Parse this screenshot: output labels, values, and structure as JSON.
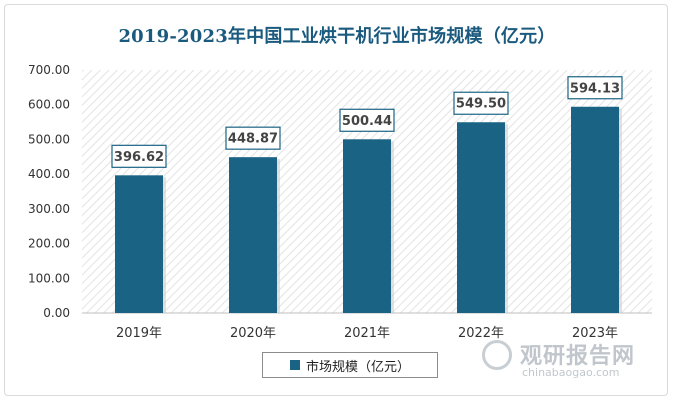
{
  "chart_data": {
    "type": "bar",
    "title": "2019-2023年中国工业烘干机行业市场规模（亿元）",
    "categories": [
      "2019年",
      "2020年",
      "2021年",
      "2022年",
      "2023年"
    ],
    "series": [
      {
        "name": "市场规模（亿元）",
        "values": [
          396.62,
          448.87,
          500.44,
          549.5,
          594.13
        ]
      }
    ],
    "data_labels": [
      "396.62",
      "448.87",
      "500.44",
      "549.50",
      "594.13"
    ],
    "ylim": [
      0,
      700
    ],
    "yticks": [
      "0.00",
      "100.00",
      "200.00",
      "300.00",
      "400.00",
      "500.00",
      "600.00",
      "700.00"
    ],
    "bar_color": "#1a6384",
    "label_border_color": "#1a6384",
    "grid": false,
    "background": "diagonal-hatch",
    "legend_position": "bottom"
  },
  "watermark": {
    "text_cn": "观研报告网",
    "text_en": "chinabaogao.com"
  }
}
